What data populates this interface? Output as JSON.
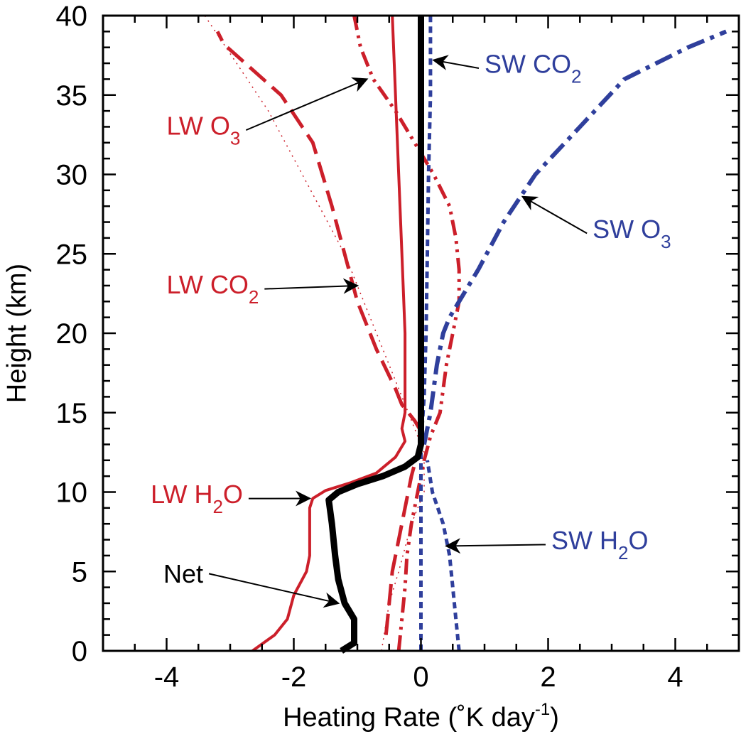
{
  "chart_data": {
    "type": "line",
    "title": "",
    "xlabel": "Heating Rate (˚K day",
    "xlabel_sup": "-1",
    "xlabel_tail": ")",
    "ylabel": "Height (km)",
    "xlim": [
      -5,
      5
    ],
    "ylim": [
      0,
      40
    ],
    "xticks": [
      -4,
      -2,
      0,
      2,
      4
    ],
    "yticks": [
      0,
      5,
      10,
      15,
      20,
      25,
      30,
      35,
      40
    ],
    "xtick_labels": [
      "-4",
      "-2",
      "0",
      "2",
      "4"
    ],
    "ytick_labels": [
      "0",
      "5",
      "10",
      "15",
      "20",
      "25",
      "30",
      "35",
      "40"
    ],
    "grid": false,
    "colors": {
      "lw": "#cc1f2a",
      "sw": "#2f3f9c",
      "net": "#000000"
    },
    "series": [
      {
        "name": "LW H2O",
        "style": "solid",
        "color": "#cc1f2a",
        "points": [
          [
            -2.65,
            0
          ],
          [
            -2.3,
            1
          ],
          [
            -2.1,
            2
          ],
          [
            -2.0,
            3.5
          ],
          [
            -1.8,
            5
          ],
          [
            -1.75,
            6
          ],
          [
            -1.75,
            7
          ],
          [
            -1.75,
            8
          ],
          [
            -1.75,
            9
          ],
          [
            -1.7,
            9.6
          ],
          [
            -1.5,
            10.1
          ],
          [
            -1.1,
            10.6
          ],
          [
            -0.7,
            11.2
          ],
          [
            -0.4,
            12.2
          ],
          [
            -0.25,
            13.2
          ],
          [
            -0.3,
            14
          ],
          [
            -0.25,
            15
          ],
          [
            -0.25,
            20
          ],
          [
            -0.3,
            25
          ],
          [
            -0.35,
            30
          ],
          [
            -0.4,
            35
          ],
          [
            -0.45,
            40
          ]
        ]
      },
      {
        "name": "LW O3",
        "style": "dashdotdot",
        "color": "#cc1f2a",
        "points": [
          [
            -0.35,
            0
          ],
          [
            -0.3,
            2
          ],
          [
            -0.25,
            4
          ],
          [
            -0.22,
            6
          ],
          [
            -0.15,
            8
          ],
          [
            -0.05,
            10
          ],
          [
            0.05,
            12
          ],
          [
            0.15,
            13.5
          ],
          [
            0.3,
            15
          ],
          [
            0.4,
            18
          ],
          [
            0.5,
            20
          ],
          [
            0.6,
            22
          ],
          [
            0.6,
            24
          ],
          [
            0.55,
            26
          ],
          [
            0.45,
            28
          ],
          [
            0.2,
            30
          ],
          [
            -0.1,
            32
          ],
          [
            -0.4,
            34
          ],
          [
            -0.75,
            36
          ],
          [
            -0.95,
            38
          ],
          [
            -1.05,
            40
          ]
        ]
      },
      {
        "name": "LW CO2",
        "style": "longdash",
        "color": "#cc1f2a",
        "points": [
          [
            -0.55,
            1
          ],
          [
            -0.5,
            3
          ],
          [
            -0.45,
            5
          ],
          [
            -0.35,
            7
          ],
          [
            -0.25,
            9
          ],
          [
            -0.15,
            11
          ],
          [
            -0.05,
            12.5
          ],
          [
            0.05,
            13.5
          ],
          [
            -0.1,
            14.5
          ],
          [
            -0.3,
            15.5
          ],
          [
            -0.4,
            16.5
          ],
          [
            -0.7,
            19
          ],
          [
            -1.0,
            22
          ],
          [
            -1.2,
            25
          ],
          [
            -1.4,
            28
          ],
          [
            -1.7,
            32
          ],
          [
            -2.2,
            35
          ],
          [
            -3.1,
            38.2
          ],
          [
            -3.2,
            39
          ]
        ]
      },
      {
        "name": "LW dotted",
        "style": "dotted",
        "color": "#cc1f2a",
        "points": [
          [
            -0.62,
            0
          ],
          [
            -0.5,
            3
          ],
          [
            -0.35,
            5
          ],
          [
            -0.15,
            8
          ],
          [
            0.05,
            10
          ],
          [
            0.05,
            12.5
          ],
          [
            -0.3,
            16
          ],
          [
            -0.5,
            18
          ],
          [
            -0.8,
            21
          ],
          [
            -1.2,
            25
          ],
          [
            -1.6,
            28
          ],
          [
            -2.0,
            31
          ],
          [
            -2.4,
            34
          ],
          [
            -2.9,
            37
          ],
          [
            -3.4,
            40
          ]
        ]
      },
      {
        "name": "SW CO2",
        "style": "shortdash",
        "color": "#2f3f9c",
        "points": [
          [
            0.0,
            0
          ],
          [
            0.0,
            13
          ],
          [
            0.05,
            16
          ],
          [
            0.08,
            20
          ],
          [
            0.1,
            25
          ],
          [
            0.12,
            30
          ],
          [
            0.15,
            35
          ],
          [
            0.15,
            40
          ]
        ]
      },
      {
        "name": "SW H2O",
        "style": "shortdash",
        "color": "#2f3f9c",
        "points": [
          [
            0.6,
            0
          ],
          [
            0.55,
            2
          ],
          [
            0.5,
            4
          ],
          [
            0.45,
            6
          ],
          [
            0.35,
            8
          ],
          [
            0.18,
            10
          ],
          [
            0.1,
            12
          ]
        ]
      },
      {
        "name": "SW O3",
        "style": "dashdot",
        "color": "#2f3f9c",
        "points": [
          [
            0.05,
            13
          ],
          [
            0.15,
            15
          ],
          [
            0.25,
            18
          ],
          [
            0.35,
            20
          ],
          [
            0.45,
            21
          ],
          [
            0.6,
            22
          ],
          [
            0.9,
            24
          ],
          [
            1.3,
            27
          ],
          [
            1.8,
            30
          ],
          [
            2.5,
            33
          ],
          [
            3.2,
            36
          ],
          [
            4.2,
            38
          ],
          [
            4.8,
            39
          ]
        ]
      },
      {
        "name": "Net",
        "style": "solidthick",
        "color": "#000000",
        "points": [
          [
            -1.25,
            0
          ],
          [
            -1.05,
            0.5
          ],
          [
            -1.05,
            2
          ],
          [
            -1.2,
            3
          ],
          [
            -1.3,
            4.5
          ],
          [
            -1.35,
            6
          ],
          [
            -1.4,
            8
          ],
          [
            -1.45,
            9.5
          ],
          [
            -1.3,
            10
          ],
          [
            -1.0,
            10.5
          ],
          [
            -0.6,
            11
          ],
          [
            -0.25,
            11.6
          ],
          [
            -0.05,
            12.2
          ],
          [
            0.0,
            13
          ],
          [
            0.0,
            40
          ]
        ]
      }
    ],
    "annotations": [
      {
        "id": "sw-co2",
        "text": "SW CO",
        "sub": "2",
        "color": "#2f3f9c",
        "x": 1.0,
        "y": 36.4,
        "arrow_to": [
          0.2,
          37.2
        ]
      },
      {
        "id": "lw-o3",
        "text": "LW O",
        "sub": "3",
        "color": "#cc1f2a",
        "x": -4.0,
        "y": 32.5,
        "arrow_to": [
          -0.85,
          36.0
        ]
      },
      {
        "id": "sw-o3",
        "text": "SW O",
        "sub": "3",
        "color": "#2f3f9c",
        "x": 2.7,
        "y": 26.0,
        "arrow_to": [
          1.6,
          28.6
        ]
      },
      {
        "id": "lw-co2",
        "text": "LW CO",
        "sub": "2",
        "color": "#cc1f2a",
        "x": -4.0,
        "y": 22.5,
        "arrow_to": [
          -1.0,
          23.0
        ]
      },
      {
        "id": "lw-h2o",
        "text": "LW H",
        "sub": "2",
        "tail": "O",
        "color": "#cc1f2a",
        "x": -4.25,
        "y": 9.3,
        "arrow_to": [
          -1.75,
          9.6
        ]
      },
      {
        "id": "sw-h2o",
        "text": "SW H",
        "sub": "2",
        "tail": "O",
        "color": "#2f3f9c",
        "x": 2.05,
        "y": 6.4,
        "arrow_to": [
          0.4,
          6.6
        ]
      },
      {
        "id": "net",
        "text": "Net",
        "sub": "",
        "color": "#000000",
        "x": -4.05,
        "y": 4.3,
        "arrow_to": [
          -1.3,
          3.0
        ]
      }
    ]
  }
}
